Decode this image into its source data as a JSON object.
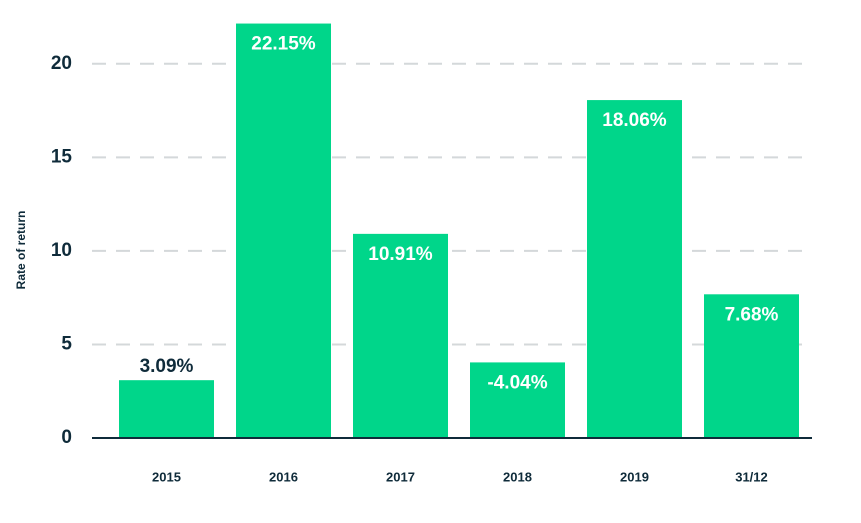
{
  "chart_data": {
    "type": "bar",
    "y_label": "Rate of return",
    "categories": [
      "2015",
      "2016",
      "2017",
      "2018",
      "2019",
      "31/12"
    ],
    "values": [
      3.09,
      22.15,
      10.91,
      -4.04,
      18.06,
      7.68
    ],
    "value_labels": [
      "3.09%",
      "22.15%",
      "10.91%",
      "-4.04%",
      "18.06%",
      "7.68%"
    ],
    "color": "#00d68a",
    "ylim": [
      0,
      22.5
    ],
    "yticks": [
      0,
      5,
      10,
      15,
      20
    ],
    "grid": true
  }
}
